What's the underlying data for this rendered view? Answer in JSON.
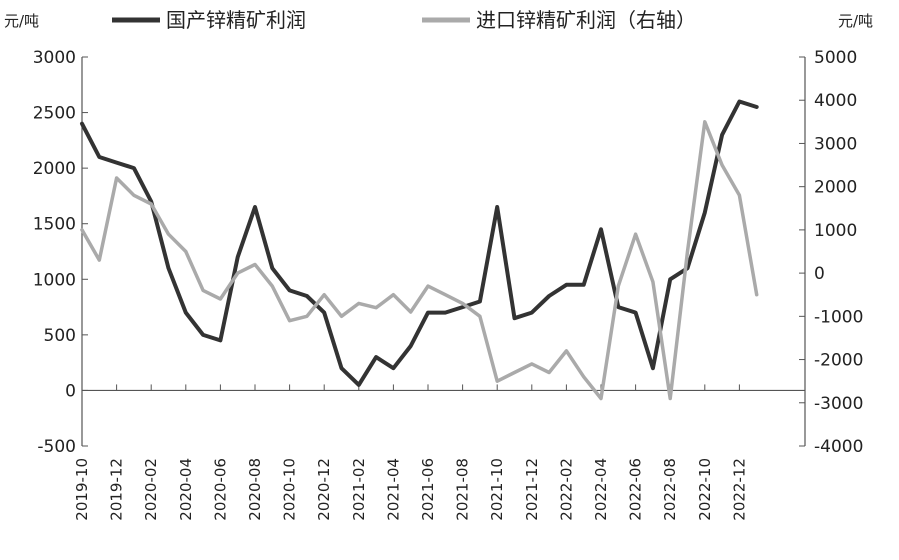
{
  "chart_data": {
    "type": "line",
    "left_unit": "元/吨",
    "right_unit": "元/吨",
    "ylim_left": [
      -500,
      3000
    ],
    "ylim_right": [
      -4000,
      5000
    ],
    "left_ticks": [
      -500,
      0,
      500,
      1000,
      1500,
      2000,
      2500,
      3000
    ],
    "left_tick_labels": [
      "-500",
      "0",
      "500",
      "1000",
      "1500",
      "2000",
      "2500",
      "3000"
    ],
    "right_ticks": [
      -4000,
      -3000,
      -2000,
      -1000,
      0,
      1000,
      2000,
      3000,
      4000,
      5000
    ],
    "right_tick_labels": [
      "-4000",
      "-3000",
      "-2000",
      "-1000",
      "0",
      "1000",
      "2000",
      "3000",
      "4000",
      "5000"
    ],
    "x_ticks": [
      "2019-10",
      "2019-12",
      "2020-02",
      "2020-04",
      "2020-06",
      "2020-08",
      "2020-10",
      "2020-12",
      "2021-02",
      "2021-04",
      "2021-06",
      "2021-08",
      "2021-10",
      "2021-12",
      "2022-02",
      "2022-04",
      "2022-06",
      "2022-08",
      "2022-10",
      "2022-12"
    ],
    "series": [
      {
        "name": "国产锌精矿利润",
        "color": "#333333",
        "axis": "left",
        "x": [
          "2019-10",
          "2019-11",
          "2019-12",
          "2020-01",
          "2020-02",
          "2020-03",
          "2020-04",
          "2020-05",
          "2020-06",
          "2020-07",
          "2020-08",
          "2020-09",
          "2020-10",
          "2020-11",
          "2020-12",
          "2021-01",
          "2021-02",
          "2021-03",
          "2021-04",
          "2021-05",
          "2021-06",
          "2021-07",
          "2021-08",
          "2021-09",
          "2021-10",
          "2021-11",
          "2021-12",
          "2022-01",
          "2022-02",
          "2022-03",
          "2022-04",
          "2022-05",
          "2022-06",
          "2022-07",
          "2022-08",
          "2022-09",
          "2022-10",
          "2022-11",
          "2022-12",
          "2023-01"
        ],
        "values": [
          2400,
          2100,
          2050,
          2000,
          1700,
          1100,
          700,
          500,
          450,
          1200,
          1650,
          1100,
          900,
          850,
          700,
          200,
          50,
          300,
          200,
          400,
          700,
          700,
          750,
          800,
          1650,
          650,
          700,
          850,
          950,
          950,
          1450,
          750,
          700,
          200,
          1000,
          1100,
          1600,
          2300,
          2600,
          2550
        ]
      },
      {
        "name": "进口锌精矿利润（右轴）",
        "color": "#aaaaaa",
        "axis": "right",
        "x": [
          "2019-10",
          "2019-11",
          "2019-12",
          "2020-01",
          "2020-02",
          "2020-03",
          "2020-04",
          "2020-05",
          "2020-06",
          "2020-07",
          "2020-08",
          "2020-09",
          "2020-10",
          "2020-11",
          "2020-12",
          "2021-01",
          "2021-02",
          "2021-03",
          "2021-04",
          "2021-05",
          "2021-06",
          "2021-07",
          "2021-08",
          "2021-09",
          "2021-10",
          "2021-11",
          "2021-12",
          "2022-01",
          "2022-02",
          "2022-03",
          "2022-04",
          "2022-05",
          "2022-06",
          "2022-07",
          "2022-08",
          "2022-09",
          "2022-10",
          "2022-11",
          "2022-12",
          "2023-01"
        ],
        "values": [
          1000,
          300,
          2200,
          1800,
          1600,
          900,
          500,
          -400,
          -600,
          0,
          200,
          -300,
          -1100,
          -1000,
          -500,
          -1000,
          -700,
          -800,
          -500,
          -900,
          -300,
          -500,
          -700,
          -1000,
          -2500,
          -2300,
          -2100,
          -2300,
          -1800,
          -2400,
          -2900,
          -300,
          900,
          -200,
          -2900,
          500,
          3500,
          2500,
          1800,
          -500
        ]
      }
    ]
  }
}
